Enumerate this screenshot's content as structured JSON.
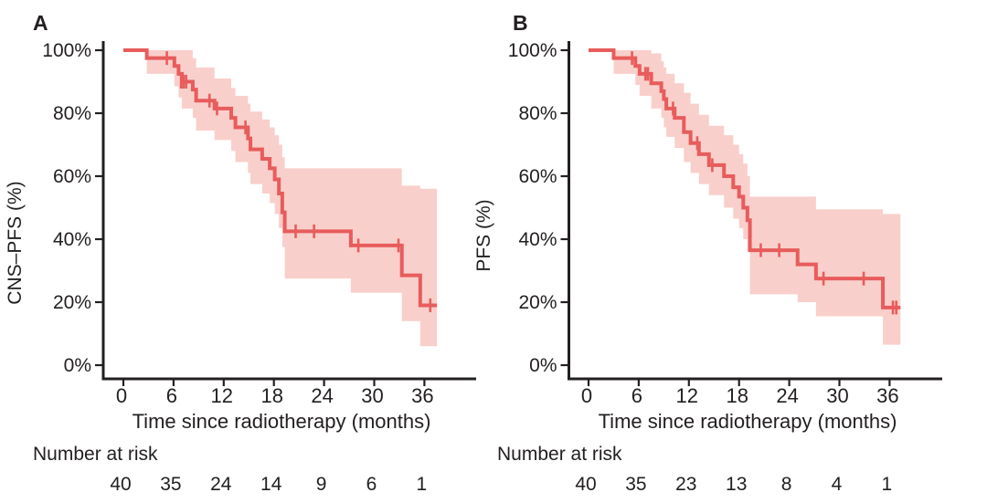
{
  "figure": {
    "background": "#ffffff",
    "text_color": "#231f20",
    "axis_color": "#231f20",
    "curve_color": "#e85c5c",
    "band_color": "#f9cfcb"
  },
  "chart_data": [
    {
      "type": "line",
      "subtype": "kaplan-meier-step",
      "panel_label": "A",
      "ylabel": "CNS–PFS (%)",
      "xlabel": "Time since radiotherapy (months)",
      "risk_label": "Number at risk",
      "x_ticks": [
        0,
        6,
        12,
        18,
        24,
        30,
        36
      ],
      "y_ticks": [
        "100%",
        "80%",
        "60%",
        "40%",
        "20%",
        "0%"
      ],
      "y_tick_values": [
        100,
        80,
        60,
        40,
        20,
        0
      ],
      "xlim": [
        0,
        42
      ],
      "ylim": [
        0,
        100
      ],
      "grid": false,
      "legend": "none",
      "risk_numbers": [
        "40",
        "35",
        "24",
        "14",
        "9",
        "6",
        "1"
      ],
      "end_time": 37.5,
      "steps": [
        [
          0,
          100
        ],
        [
          2.8,
          97.5
        ],
        [
          6.1,
          95
        ],
        [
          6.6,
          92.5
        ],
        [
          7.0,
          90
        ],
        [
          8.3,
          87.5
        ],
        [
          8.7,
          84
        ],
        [
          10.9,
          81.5
        ],
        [
          12.9,
          78.5
        ],
        [
          13.4,
          75.5
        ],
        [
          14.9,
          72
        ],
        [
          15.2,
          68.5
        ],
        [
          16.6,
          65.5
        ],
        [
          17.5,
          62.5
        ],
        [
          18.1,
          59
        ],
        [
          18.6,
          54.5
        ],
        [
          19.0,
          48.5
        ],
        [
          19.3,
          42.5
        ],
        [
          27.2,
          38
        ],
        [
          33.3,
          28.5
        ],
        [
          35.5,
          19
        ]
      ],
      "censors": [
        [
          5.2,
          97.5
        ],
        [
          6.9,
          90
        ],
        [
          7.2,
          90
        ],
        [
          7.5,
          90
        ],
        [
          10.3,
          84
        ],
        [
          11.2,
          81.5
        ],
        [
          14.6,
          75.5
        ],
        [
          20.6,
          42.5
        ],
        [
          22.8,
          42.5
        ],
        [
          28.1,
          38
        ],
        [
          32.9,
          38
        ],
        [
          36.7,
          19
        ]
      ],
      "ci": [
        [
          2.8,
          92.5,
          100
        ],
        [
          6.1,
          88.5,
          100
        ],
        [
          6.6,
          85,
          100
        ],
        [
          7.0,
          81.5,
          100
        ],
        [
          8.3,
          78.5,
          97.5
        ],
        [
          8.7,
          74.5,
          94.5
        ],
        [
          10.9,
          71.5,
          91
        ],
        [
          12.9,
          68,
          88
        ],
        [
          13.4,
          64.5,
          85.5
        ],
        [
          14.9,
          61,
          83
        ],
        [
          15.2,
          57.5,
          80.5
        ],
        [
          16.6,
          54.5,
          78
        ],
        [
          17.5,
          51.5,
          75.5
        ],
        [
          18.1,
          48,
          73
        ],
        [
          18.6,
          43.5,
          70
        ],
        [
          19.0,
          37.5,
          66
        ],
        [
          19.3,
          27.5,
          62.5
        ],
        [
          27.2,
          23,
          62.5
        ],
        [
          33.3,
          14,
          57
        ],
        [
          35.5,
          6,
          56
        ]
      ]
    },
    {
      "type": "line",
      "subtype": "kaplan-meier-step",
      "panel_label": "B",
      "ylabel": "PFS (%)",
      "xlabel": "Time since radiotherapy (months)",
      "risk_label": "Number at risk",
      "x_ticks": [
        0,
        6,
        12,
        18,
        24,
        30,
        36
      ],
      "y_ticks": [
        "100%",
        "80%",
        "60%",
        "40%",
        "20%",
        "0%"
      ],
      "y_tick_values": [
        100,
        80,
        60,
        40,
        20,
        0
      ],
      "xlim": [
        0,
        42
      ],
      "ylim": [
        0,
        100
      ],
      "grid": false,
      "legend": "none",
      "risk_numbers": [
        "40",
        "35",
        "23",
        "13",
        "8",
        "4",
        "1"
      ],
      "end_time": 37.3,
      "steps": [
        [
          0,
          100
        ],
        [
          3.0,
          97.5
        ],
        [
          5.6,
          95
        ],
        [
          6.1,
          92.5
        ],
        [
          7.5,
          89.5
        ],
        [
          8.7,
          87
        ],
        [
          9.0,
          84.5
        ],
        [
          9.3,
          81.5
        ],
        [
          10.3,
          78.5
        ],
        [
          11.4,
          74
        ],
        [
          12.2,
          70.5
        ],
        [
          13.2,
          67
        ],
        [
          14.4,
          63.5
        ],
        [
          16.2,
          60
        ],
        [
          17.3,
          56.5
        ],
        [
          18.0,
          53.5
        ],
        [
          18.5,
          50
        ],
        [
          19.0,
          46
        ],
        [
          19.3,
          36.5
        ],
        [
          25.0,
          32
        ],
        [
          27.2,
          27.5
        ],
        [
          35.2,
          18.3
        ]
      ],
      "censors": [
        [
          5.2,
          97.5
        ],
        [
          6.8,
          92.5
        ],
        [
          7.1,
          92.5
        ],
        [
          10.1,
          81.5
        ],
        [
          13.0,
          70.5
        ],
        [
          14.8,
          63.5
        ],
        [
          20.6,
          36.5
        ],
        [
          22.8,
          36.5
        ],
        [
          28.1,
          27.5
        ],
        [
          32.9,
          27.5
        ],
        [
          36.4,
          18.3
        ],
        [
          36.8,
          18.3
        ]
      ],
      "ci": [
        [
          3.0,
          92.5,
          100
        ],
        [
          5.6,
          89,
          100
        ],
        [
          6.1,
          85.5,
          100
        ],
        [
          7.5,
          81.5,
          99
        ],
        [
          8.7,
          78.5,
          96.5
        ],
        [
          9.0,
          75.5,
          94.5
        ],
        [
          9.3,
          72.5,
          92.5
        ],
        [
          10.3,
          69,
          89.5
        ],
        [
          11.4,
          64.5,
          86.5
        ],
        [
          12.2,
          61,
          83
        ],
        [
          13.2,
          57.5,
          79.5
        ],
        [
          14.4,
          54,
          76
        ],
        [
          16.2,
          50,
          73
        ],
        [
          17.3,
          46.5,
          70
        ],
        [
          18.0,
          43.5,
          67
        ],
        [
          18.5,
          40,
          64
        ],
        [
          19.0,
          36,
          60
        ],
        [
          19.3,
          22.5,
          53.5
        ],
        [
          25.0,
          20,
          53.5
        ],
        [
          27.2,
          15.5,
          49.5
        ],
        [
          35.2,
          6.5,
          48
        ]
      ]
    }
  ]
}
